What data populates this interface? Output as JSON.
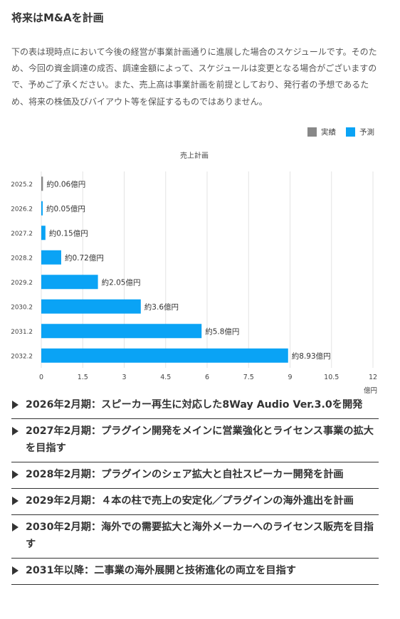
{
  "section": {
    "title": "将来はM&Aを計画",
    "description": "下の表は現時点において今後の経営が事業計画通りに進展した場合のスケジュールです。そのため、今回の資金調達の成否、調達金額によって、スケジュールは変更となる場合がございますので、予めご了承ください。また、売上高は事業計画を前提としており、発行者の予想であるため、将来の株価及びバイアウト等を保証するものではありません。"
  },
  "legend": {
    "actual_label": "実績",
    "forecast_label": "予測",
    "actual_color": "#888888",
    "forecast_color": "#0aa3f5"
  },
  "chart_data": {
    "type": "bar",
    "orientation": "horizontal",
    "title": "売上計画",
    "categories": [
      "2025.2",
      "2026.2",
      "2027.2",
      "2028.2",
      "2029.2",
      "2030.2",
      "2031.2",
      "2032.2"
    ],
    "values": [
      0.06,
      0.05,
      0.15,
      0.72,
      2.05,
      3.6,
      5.8,
      8.93
    ],
    "status": [
      "actual",
      "forecast",
      "forecast",
      "forecast",
      "forecast",
      "forecast",
      "forecast",
      "forecast"
    ],
    "data_labels": [
      "約0.06億円",
      "約0.05億円",
      "約0.15億円",
      "約0.72億円",
      "約2.05億円",
      "約3.6億円",
      "約5.8億円",
      "約8.93億円"
    ],
    "xlim": [
      0,
      12
    ],
    "xticks": [
      "0",
      "1.5",
      "3",
      "4.5",
      "6",
      "7.5",
      "9",
      "10.5",
      "12"
    ],
    "xlabel": "億円",
    "grid": "vertical",
    "legend_position": "top-right"
  },
  "milestones": [
    "2026年2月期：スピーカー再生に対応した8Way Audio Ver.3.0を開発",
    "2027年2月期：プラグイン開発をメインに営業強化とライセンス事業の拡大を目指す",
    "2028年2月期：プラグインのシェア拡大と自社スピーカー開発を計画",
    "2029年2月期：４本の柱で売上の安定化／プラグインの海外進出を計画",
    "2030年2月期：海外での需要拡大と海外メーカーへのライセンス販売を目指す",
    "2031年以降：二事業の海外展開と技術進化の両立を目指す"
  ]
}
